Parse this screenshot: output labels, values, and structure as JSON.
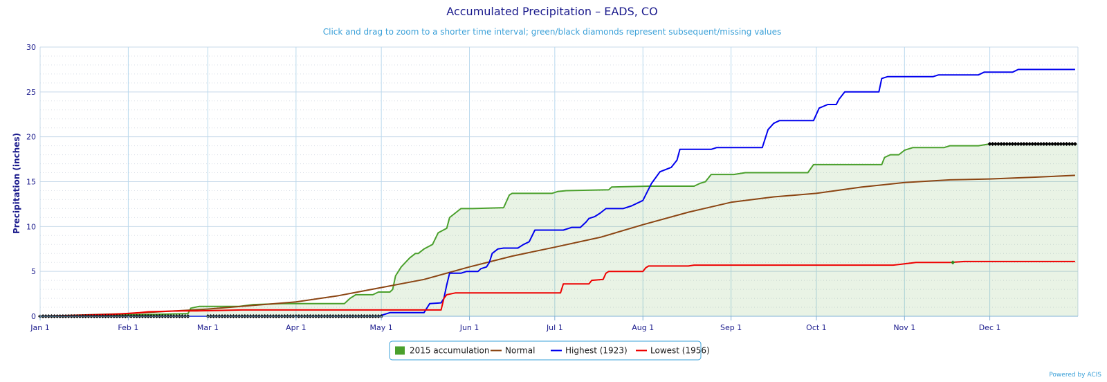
{
  "chart_data": {
    "type": "line",
    "title": "Accumulated Precipitation – EADS, CO",
    "subtitle": "Click and drag to zoom to a shorter time interval; green/black diamonds represent subsequent/missing values",
    "ylabel": "Precipitation (inches)",
    "xlabel": "",
    "ylim": [
      0,
      30
    ],
    "xlim": [
      0,
      365
    ],
    "yticks": [
      0,
      5,
      10,
      15,
      20,
      25,
      30
    ],
    "xticks": [
      {
        "day": 0,
        "label": "Jan 1"
      },
      {
        "day": 31,
        "label": "Feb 1"
      },
      {
        "day": 59,
        "label": "Mar 1"
      },
      {
        "day": 90,
        "label": "Apr 1"
      },
      {
        "day": 120,
        "label": "May 1"
      },
      {
        "day": 151,
        "label": "Jun 1"
      },
      {
        "day": 181,
        "label": "Jul 1"
      },
      {
        "day": 212,
        "label": "Aug 1"
      },
      {
        "day": 243,
        "label": "Sep 1"
      },
      {
        "day": 273,
        "label": "Oct 1"
      },
      {
        "day": 304,
        "label": "Nov 1"
      },
      {
        "day": 334,
        "label": "Dec 1"
      }
    ],
    "grid": true,
    "legend_placement": "bottom-center",
    "series": [
      {
        "name": "2015 accumulation",
        "color": "#4aa02c",
        "area": true,
        "step": true,
        "points": [
          [
            0,
            0
          ],
          [
            10,
            0
          ],
          [
            20,
            0.1
          ],
          [
            40,
            0.2
          ],
          [
            52,
            0.3
          ],
          [
            53,
            0.9
          ],
          [
            56,
            1.1
          ],
          [
            70,
            1.1
          ],
          [
            75,
            1.3
          ],
          [
            85,
            1.4
          ],
          [
            107,
            1.4
          ],
          [
            109,
            2.0
          ],
          [
            111,
            2.4
          ],
          [
            117,
            2.4
          ],
          [
            119,
            2.7
          ],
          [
            123,
            2.7
          ],
          [
            124,
            3.0
          ],
          [
            125,
            4.5
          ],
          [
            127,
            5.5
          ],
          [
            130,
            6.5
          ],
          [
            132,
            7.0
          ],
          [
            133,
            7.0
          ],
          [
            135,
            7.5
          ],
          [
            138,
            8.0
          ],
          [
            140,
            9.3
          ],
          [
            143,
            9.8
          ],
          [
            144,
            11.0
          ],
          [
            146,
            11.5
          ],
          [
            148,
            12.0
          ],
          [
            152,
            12.0
          ],
          [
            163,
            12.1
          ],
          [
            165,
            13.5
          ],
          [
            166,
            13.7
          ],
          [
            180,
            13.7
          ],
          [
            182,
            13.9
          ],
          [
            185,
            14.0
          ],
          [
            200,
            14.1
          ],
          [
            201,
            14.4
          ],
          [
            214,
            14.5
          ],
          [
            230,
            14.5
          ],
          [
            232,
            14.8
          ],
          [
            234,
            15.0
          ],
          [
            236,
            15.8
          ],
          [
            244,
            15.8
          ],
          [
            248,
            16.0
          ],
          [
            270,
            16.0
          ],
          [
            272,
            16.9
          ],
          [
            280,
            16.9
          ],
          [
            296,
            16.9
          ],
          [
            297,
            17.7
          ],
          [
            299,
            18.0
          ],
          [
            302,
            18.0
          ],
          [
            304,
            18.5
          ],
          [
            307,
            18.8
          ],
          [
            318,
            18.8
          ],
          [
            320,
            19.0
          ],
          [
            330,
            19.0
          ],
          [
            334,
            19.2
          ]
        ]
      },
      {
        "name": "Normal",
        "color": "#8b4513",
        "area": false,
        "step": false,
        "points": [
          [
            0,
            0
          ],
          [
            31,
            0.3
          ],
          [
            59,
            0.8
          ],
          [
            90,
            1.6
          ],
          [
            105,
            2.3
          ],
          [
            120,
            3.2
          ],
          [
            135,
            4.1
          ],
          [
            151,
            5.5
          ],
          [
            166,
            6.7
          ],
          [
            181,
            7.7
          ],
          [
            197,
            8.8
          ],
          [
            212,
            10.2
          ],
          [
            228,
            11.6
          ],
          [
            243,
            12.7
          ],
          [
            258,
            13.3
          ],
          [
            273,
            13.7
          ],
          [
            289,
            14.4
          ],
          [
            304,
            14.9
          ],
          [
            320,
            15.2
          ],
          [
            334,
            15.3
          ],
          [
            350,
            15.5
          ],
          [
            364,
            15.7
          ]
        ]
      },
      {
        "name": "Highest (1923)",
        "color": "#0000ee",
        "area": false,
        "step": true,
        "points": [
          [
            0,
            0
          ],
          [
            119,
            0
          ],
          [
            123,
            0.4
          ],
          [
            135,
            0.4
          ],
          [
            137,
            1.4
          ],
          [
            141,
            1.5
          ],
          [
            142,
            2.0
          ],
          [
            143,
            3.5
          ],
          [
            144,
            4.8
          ],
          [
            148,
            4.8
          ],
          [
            150,
            5.0
          ],
          [
            154,
            5.0
          ],
          [
            155,
            5.3
          ],
          [
            157,
            5.5
          ],
          [
            158,
            6.0
          ],
          [
            159,
            7.0
          ],
          [
            161,
            7.5
          ],
          [
            163,
            7.6
          ],
          [
            168,
            7.6
          ],
          [
            170,
            8.0
          ],
          [
            172,
            8.3
          ],
          [
            174,
            9.6
          ],
          [
            184,
            9.6
          ],
          [
            187,
            9.9
          ],
          [
            190,
            9.9
          ],
          [
            192,
            10.5
          ],
          [
            193,
            10.9
          ],
          [
            195,
            11.1
          ],
          [
            197,
            11.5
          ],
          [
            199,
            12.0
          ],
          [
            205,
            12.0
          ],
          [
            208,
            12.3
          ],
          [
            212,
            12.9
          ],
          [
            215,
            14.8
          ],
          [
            218,
            16.1
          ],
          [
            222,
            16.6
          ],
          [
            224,
            17.4
          ],
          [
            225,
            18.6
          ],
          [
            236,
            18.6
          ],
          [
            238,
            18.8
          ],
          [
            254,
            18.8
          ],
          [
            256,
            20.8
          ],
          [
            258,
            21.5
          ],
          [
            260,
            21.8
          ],
          [
            272,
            21.8
          ],
          [
            274,
            23.2
          ],
          [
            277,
            23.6
          ],
          [
            280,
            23.6
          ],
          [
            281,
            24.2
          ],
          [
            283,
            25.0
          ],
          [
            295,
            25.0
          ],
          [
            296,
            26.5
          ],
          [
            298,
            26.7
          ],
          [
            304,
            26.7
          ],
          [
            314,
            26.7
          ],
          [
            316,
            26.9
          ],
          [
            330,
            26.9
          ],
          [
            332,
            27.2
          ],
          [
            342,
            27.2
          ],
          [
            344,
            27.5
          ],
          [
            364,
            27.5
          ]
        ]
      },
      {
        "name": "Lowest (1956)",
        "color": "#ee0000",
        "area": false,
        "step": true,
        "points": [
          [
            0,
            0
          ],
          [
            25,
            0.2
          ],
          [
            30,
            0.3
          ],
          [
            35,
            0.4
          ],
          [
            38,
            0.5
          ],
          [
            50,
            0.6
          ],
          [
            55,
            0.6
          ],
          [
            71,
            0.7
          ],
          [
            141,
            0.7
          ],
          [
            142,
            2.0
          ],
          [
            143,
            2.4
          ],
          [
            146,
            2.6
          ],
          [
            160,
            2.6
          ],
          [
            183,
            2.6
          ],
          [
            184,
            3.6
          ],
          [
            193,
            3.6
          ],
          [
            194,
            4.0
          ],
          [
            198,
            4.1
          ],
          [
            199,
            4.8
          ],
          [
            200,
            5.0
          ],
          [
            212,
            5.0
          ],
          [
            213,
            5.4
          ],
          [
            214,
            5.6
          ],
          [
            228,
            5.6
          ],
          [
            230,
            5.7
          ],
          [
            300,
            5.7
          ],
          [
            303,
            5.8
          ],
          [
            308,
            6.0
          ],
          [
            320,
            6.0
          ],
          [
            325,
            6.1
          ],
          [
            364,
            6.1
          ]
        ]
      }
    ],
    "missing_markers": [
      {
        "start": 0,
        "end": 52,
        "step": 1
      },
      {
        "start": 59,
        "end": 120,
        "step": 1
      },
      {
        "start": 334,
        "end": 364,
        "step": 1
      }
    ],
    "subsequent_markers": [
      {
        "day": 321,
        "value": 6.0
      }
    ]
  },
  "legend": {
    "items": [
      {
        "label": "2015 accumulation",
        "color": "#4aa02c",
        "kind": "box"
      },
      {
        "label": "Normal",
        "color": "#8b4513",
        "kind": "line"
      },
      {
        "label": "Highest (1923)",
        "color": "#0000ee",
        "kind": "line"
      },
      {
        "label": "Lowest (1956)",
        "color": "#ee0000",
        "kind": "line"
      }
    ]
  },
  "credit": "Powered by ACIS"
}
